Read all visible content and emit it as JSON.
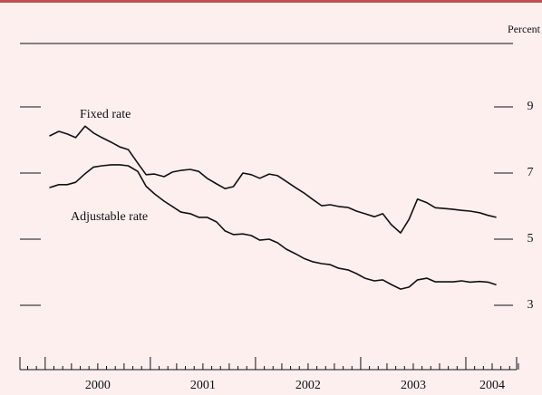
{
  "chart_data": {
    "type": "line",
    "y_axis_label": "Percent",
    "annotations": [
      "Fixed rate",
      "Adjustable rate"
    ],
    "x": [
      2000.04,
      2000.13,
      2000.21,
      2000.29,
      2000.38,
      2000.46,
      2000.54,
      2000.63,
      2000.71,
      2000.79,
      2000.88,
      2000.96,
      2001.04,
      2001.13,
      2001.21,
      2001.29,
      2001.38,
      2001.46,
      2001.54,
      2001.63,
      2001.71,
      2001.79,
      2001.88,
      2001.96,
      2002.04,
      2002.13,
      2002.21,
      2002.29,
      2002.38,
      2002.46,
      2002.54,
      2002.63,
      2002.71,
      2002.79,
      2002.88,
      2002.96,
      2003.04,
      2003.13,
      2003.21,
      2003.29,
      2003.38,
      2003.46,
      2003.54,
      2003.63,
      2003.71,
      2003.79,
      2003.88,
      2003.96,
      2004.04,
      2004.13,
      2004.21,
      2004.29
    ],
    "series": [
      {
        "name": "Fixed rate",
        "color": "#111111",
        "values": [
          8.12,
          8.26,
          8.18,
          8.07,
          8.42,
          8.21,
          8.07,
          7.93,
          7.79,
          7.71,
          7.3,
          6.95,
          6.97,
          6.89,
          7.03,
          7.08,
          7.11,
          7.05,
          6.84,
          6.67,
          6.53,
          6.59,
          7.0,
          6.95,
          6.84,
          6.97,
          6.92,
          6.75,
          6.56,
          6.4,
          6.21,
          6.01,
          6.04,
          5.99,
          5.96,
          5.85,
          5.77,
          5.68,
          5.77,
          5.44,
          5.19,
          5.6,
          6.21,
          6.1,
          5.95,
          5.93,
          5.9,
          5.87,
          5.85,
          5.8,
          5.72,
          5.66
        ]
      },
      {
        "name": "Adjustable rate",
        "color": "#111111",
        "values": [
          6.56,
          6.65,
          6.65,
          6.72,
          6.98,
          7.18,
          7.22,
          7.25,
          7.25,
          7.22,
          7.05,
          6.6,
          6.37,
          6.15,
          5.99,
          5.82,
          5.77,
          5.66,
          5.66,
          5.52,
          5.25,
          5.14,
          5.16,
          5.11,
          4.97,
          5.0,
          4.89,
          4.7,
          4.56,
          4.42,
          4.32,
          4.26,
          4.23,
          4.12,
          4.07,
          3.96,
          3.82,
          3.74,
          3.77,
          3.63,
          3.49,
          3.55,
          3.77,
          3.82,
          3.71,
          3.71,
          3.71,
          3.74,
          3.7,
          3.72,
          3.7,
          3.62
        ]
      }
    ],
    "xlim": [
      1999.76,
      2004.5
    ],
    "xticks": [
      {
        "value": 2000,
        "label": "2000"
      },
      {
        "value": 2001,
        "label": "2001"
      },
      {
        "value": 2002,
        "label": "2002"
      },
      {
        "value": 2003,
        "label": "2003"
      },
      {
        "value": 2004,
        "label": "2004"
      }
    ],
    "ylim": [
      1,
      11
    ],
    "yticks": [
      3,
      5,
      7,
      9
    ],
    "grid": false
  }
}
